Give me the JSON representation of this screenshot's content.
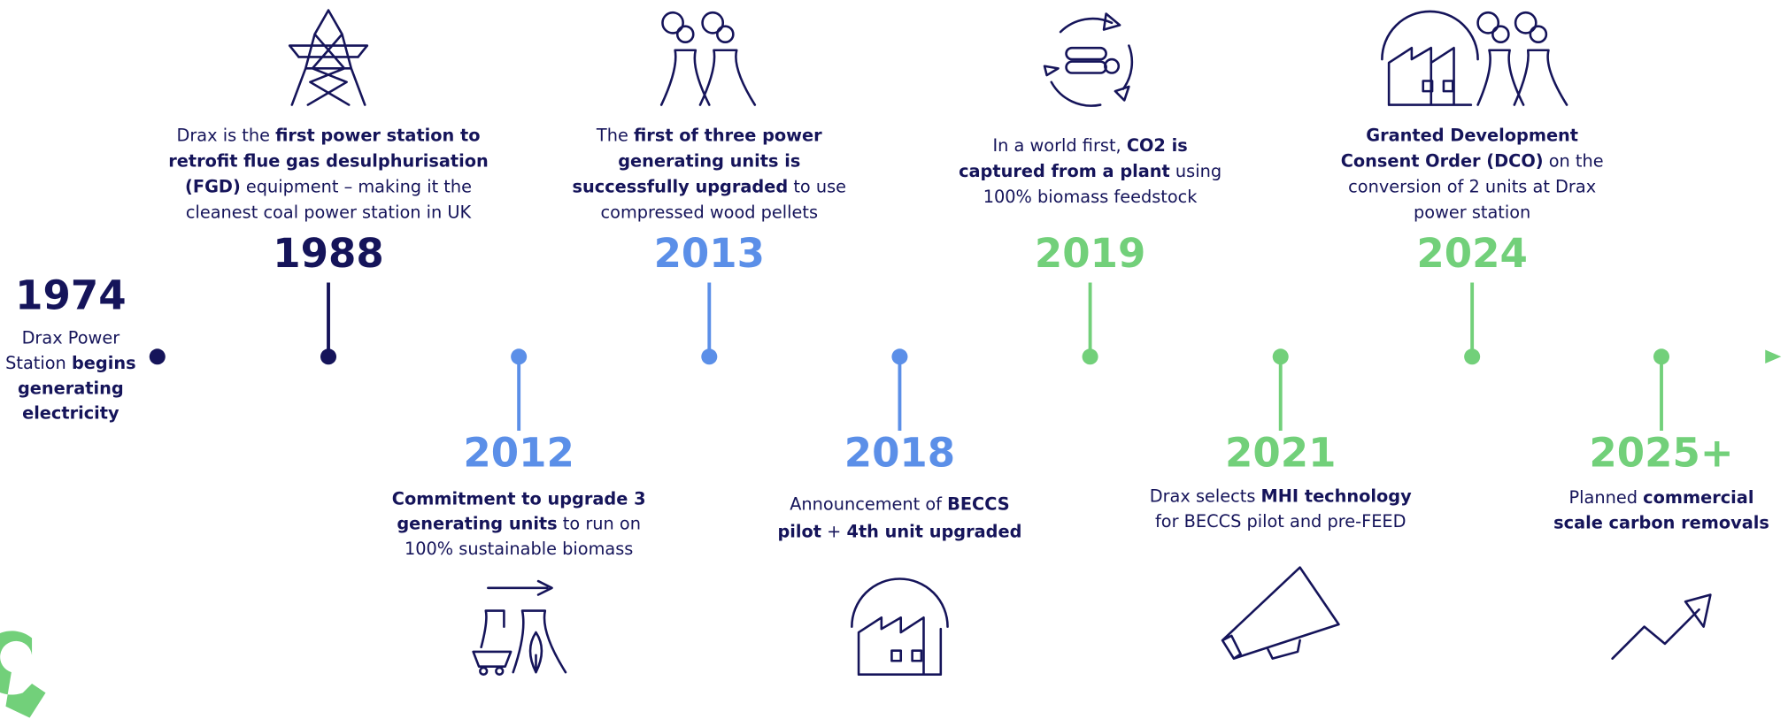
{
  "events": [
    {
      "year": "1974",
      "color": "#15145a",
      "lines": [
        [
          {
            "t": "Drax Power"
          }
        ],
        [
          {
            "t": "Station "
          },
          {
            "t": "begins",
            "b": true
          }
        ],
        [
          {
            "t": "generating",
            "b": true
          }
        ],
        [
          {
            "t": "electricity",
            "b": true
          }
        ]
      ]
    },
    {
      "year": "1988",
      "color": "#15145a",
      "lines": [
        [
          {
            "t": "Drax is the "
          },
          {
            "t": "first power station to",
            "b": true
          }
        ],
        [
          {
            "t": "retrofit flue gas desulphurisation",
            "b": true
          }
        ],
        [
          {
            "t": "(FGD)",
            "b": true
          },
          {
            "t": " equipment – making it the"
          }
        ],
        [
          {
            "t": "cleanest coal power station in UK"
          }
        ]
      ]
    },
    {
      "year": "2012",
      "color": "#5b8fe8",
      "lines": [
        [
          {
            "t": "Commitment to upgrade 3",
            "b": true
          }
        ],
        [
          {
            "t": "generating units",
            "b": true
          },
          {
            "t": " to run on"
          }
        ],
        [
          {
            "t": "100% sustainable biomass"
          }
        ]
      ]
    },
    {
      "year": "2013",
      "color": "#5b8fe8",
      "lines": [
        [
          {
            "t": "The "
          },
          {
            "t": "first of three power",
            "b": true
          }
        ],
        [
          {
            "t": "generating units is",
            "b": true
          }
        ],
        [
          {
            "t": "successfully upgraded",
            "b": true
          },
          {
            "t": " to use"
          }
        ],
        [
          {
            "t": "compressed wood pellets"
          }
        ]
      ]
    },
    {
      "year": "2018",
      "color": "#5b8fe8",
      "lines": [
        [
          {
            "t": "Announcement of "
          },
          {
            "t": "BECCS",
            "b": true
          }
        ],
        [
          {
            "t": "pilot",
            "b": true
          },
          {
            "t": " + "
          },
          {
            "t": "4th unit upgraded",
            "b": true
          }
        ]
      ]
    },
    {
      "year": "2019",
      "color": "#72d07a",
      "lines": [
        [
          {
            "t": "In a world first, "
          },
          {
            "t": "CO2 is",
            "b": true
          }
        ],
        [
          {
            "t": "captured from a plant",
            "b": true
          },
          {
            "t": " using"
          }
        ],
        [
          {
            "t": "100% biomass feedstock"
          }
        ]
      ]
    },
    {
      "year": "2021",
      "color": "#72d07a",
      "lines": [
        [
          {
            "t": "Drax selects "
          },
          {
            "t": "MHI technology",
            "b": true
          }
        ],
        [
          {
            "t": "for BECCS pilot and pre-FEED"
          }
        ]
      ]
    },
    {
      "year": "2024",
      "color": "#72d07a",
      "lines": [
        [
          {
            "t": "Granted Development",
            "b": true
          }
        ],
        [
          {
            "t": "Consent Order (DCO)",
            "b": true
          },
          {
            "t": " on the"
          }
        ],
        [
          {
            "t": "conversion of 2 units at Drax"
          }
        ],
        [
          {
            "t": "power station"
          }
        ]
      ]
    },
    {
      "year": "2025+",
      "color": "#72d07a",
      "lines": [
        [
          {
            "t": "Planned "
          },
          {
            "t": "commercial",
            "b": true
          }
        ],
        [
          {
            "t": "scale carbon removals",
            "b": true
          }
        ]
      ]
    }
  ]
}
